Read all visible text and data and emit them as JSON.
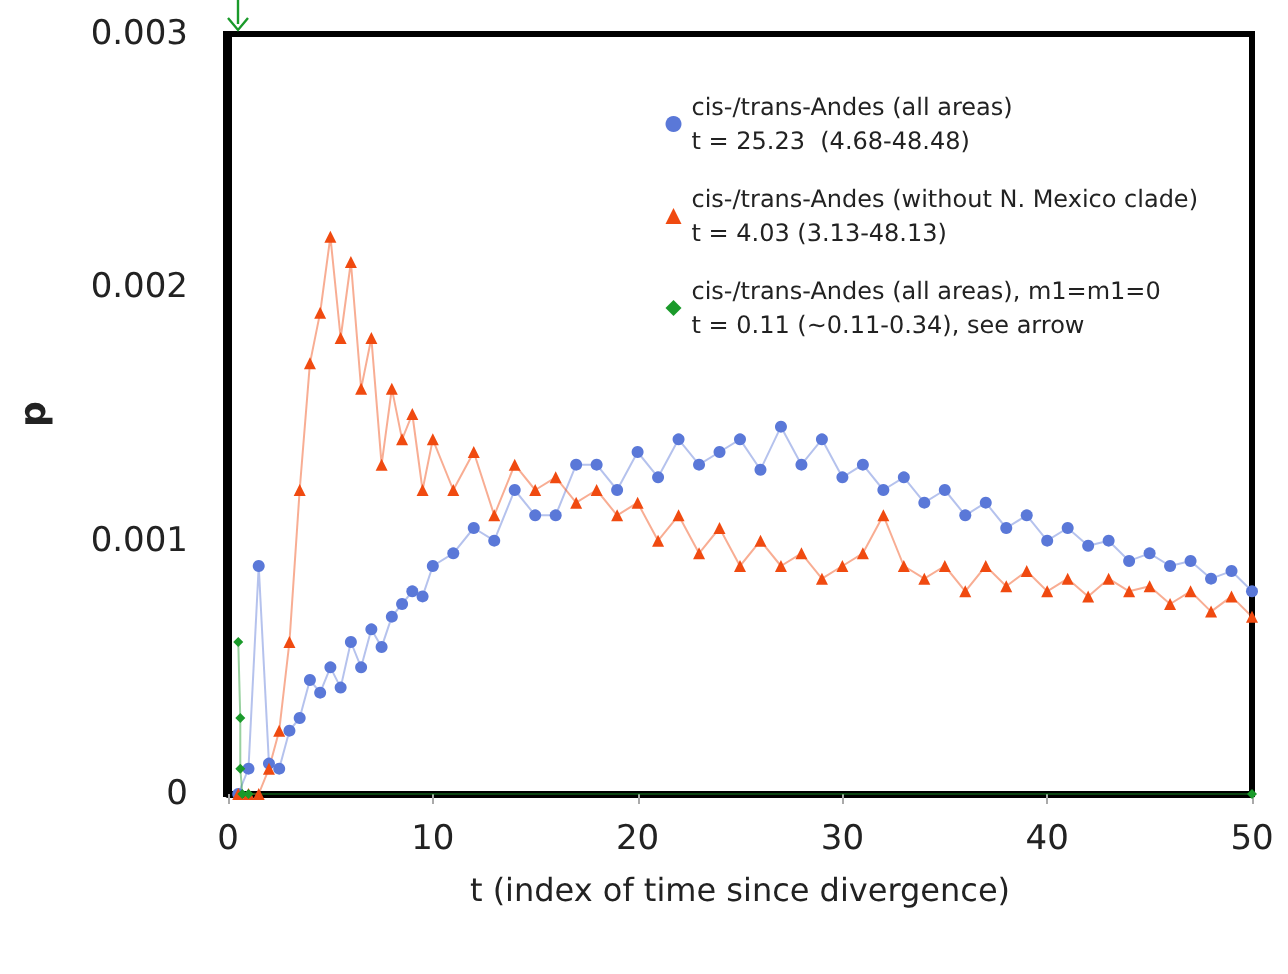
{
  "chart_data": {
    "type": "line",
    "xlabel": "t (index of time since divergence)",
    "ylabel": "p",
    "xlim": [
      0,
      50
    ],
    "xticks": [
      0,
      10,
      20,
      30,
      40,
      50
    ],
    "ylim": [
      0,
      0.003
    ],
    "yticks": [
      0,
      0.001,
      0.002,
      0.003
    ],
    "grid": false,
    "legend": "top right",
    "line_style": "solid",
    "series": [
      {
        "name": "cis-/trans-Andes (all areas)\nt = 25.23  (4.68-48.48)",
        "color": "#5a78d8",
        "marker": "circle",
        "x": [
          0.5,
          1,
          1.5,
          2,
          2.5,
          3,
          3.5,
          4,
          4.5,
          5,
          5.5,
          6,
          6.5,
          7,
          7.5,
          8,
          8.5,
          9,
          9.5,
          10,
          11,
          12,
          13,
          14,
          15,
          16,
          17,
          18,
          19,
          20,
          21,
          22,
          23,
          24,
          25,
          26,
          27,
          28,
          29,
          30,
          31,
          32,
          33,
          34,
          35,
          36,
          37,
          38,
          39,
          40,
          41,
          42,
          43,
          44,
          45,
          46,
          47,
          48,
          49,
          50
        ],
        "values": [
          0,
          0.0001,
          0.0009,
          0.00012,
          0.0001,
          0.00025,
          0.0003,
          0.00045,
          0.0004,
          0.0005,
          0.00042,
          0.0006,
          0.0005,
          0.00065,
          0.00058,
          0.0007,
          0.00075,
          0.0008,
          0.00078,
          0.0009,
          0.00095,
          0.00105,
          0.001,
          0.0012,
          0.0011,
          0.0011,
          0.0013,
          0.0013,
          0.0012,
          0.00135,
          0.00125,
          0.0014,
          0.0013,
          0.00135,
          0.0014,
          0.00128,
          0.00145,
          0.0013,
          0.0014,
          0.00125,
          0.0013,
          0.0012,
          0.00125,
          0.00115,
          0.0012,
          0.0011,
          0.00115,
          0.00105,
          0.0011,
          0.001,
          0.00105,
          0.00098,
          0.001,
          0.00092,
          0.00095,
          0.0009,
          0.00092,
          0.00085,
          0.00088,
          0.0008
        ]
      },
      {
        "name": "cis-/trans-Andes (without N. Mexico clade)\nt = 4.03 (3.13-48.13)",
        "color": "#f04a10",
        "marker": "triangle",
        "x": [
          0.5,
          1,
          1.5,
          2,
          2.5,
          3,
          3.5,
          4,
          4.5,
          5,
          5.5,
          6,
          6.5,
          7,
          7.5,
          8,
          8.5,
          9,
          9.5,
          10,
          11,
          12,
          13,
          14,
          15,
          16,
          17,
          18,
          19,
          20,
          21,
          22,
          23,
          24,
          25,
          26,
          27,
          28,
          29,
          30,
          31,
          32,
          33,
          34,
          35,
          36,
          37,
          38,
          39,
          40,
          41,
          42,
          43,
          44,
          45,
          46,
          47,
          48,
          49,
          50
        ],
        "values": [
          0,
          0,
          0,
          0.0001,
          0.00025,
          0.0006,
          0.0012,
          0.0017,
          0.0019,
          0.0022,
          0.0018,
          0.0021,
          0.0016,
          0.0018,
          0.0013,
          0.0016,
          0.0014,
          0.0015,
          0.0012,
          0.0014,
          0.0012,
          0.00135,
          0.0011,
          0.0013,
          0.0012,
          0.00125,
          0.00115,
          0.0012,
          0.0011,
          0.00115,
          0.001,
          0.0011,
          0.00095,
          0.00105,
          0.0009,
          0.001,
          0.0009,
          0.00095,
          0.00085,
          0.0009,
          0.00095,
          0.0011,
          0.0009,
          0.00085,
          0.0009,
          0.0008,
          0.0009,
          0.00082,
          0.00088,
          0.0008,
          0.00085,
          0.00078,
          0.00085,
          0.0008,
          0.00082,
          0.00075,
          0.0008,
          0.00072,
          0.00078,
          0.0007
        ]
      },
      {
        "name": "cis-/trans-Andes (all areas), m1=m1=0\nt = 0.11 (~0.11-0.34), see arrow",
        "color": "#1a9a2a",
        "marker": "diamond",
        "x": [
          0.5,
          0.6,
          0.6,
          0.7,
          1,
          50
        ],
        "values": [
          0.0006,
          0.0003,
          0.0001,
          0,
          0,
          0
        ]
      }
    ]
  }
}
